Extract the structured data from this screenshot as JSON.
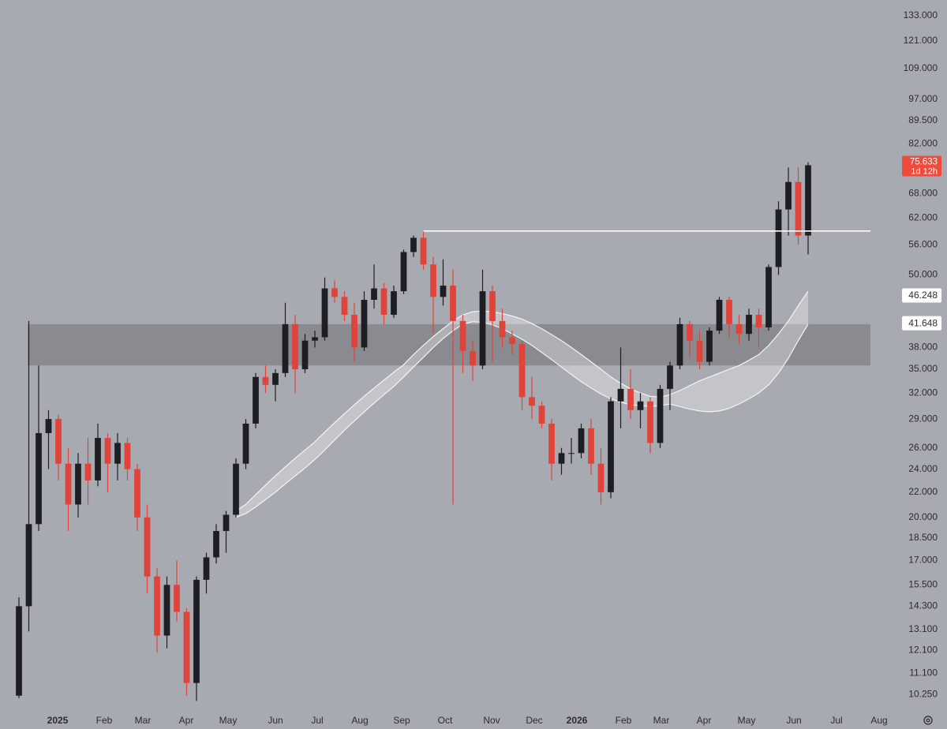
{
  "chart_data": {
    "type": "candlestick",
    "log_scale": true,
    "up_color": "#1d1e23",
    "down_color": "#df4339",
    "open": [
      10.2,
      14.3,
      19.5,
      27.5,
      29,
      24.5,
      21,
      24.5,
      23,
      27,
      24.5,
      26.5,
      24,
      20,
      16,
      12.8,
      15.5,
      14,
      10.7,
      15.8,
      17.2,
      19,
      20.2,
      24.5,
      28.5,
      34,
      33,
      34.5,
      41.5,
      35,
      39,
      39.5,
      47.5,
      46,
      43,
      38,
      45.5,
      47.5,
      43,
      47,
      54.5,
      57.5,
      52,
      46,
      48,
      42,
      37.5,
      35.5,
      47,
      42,
      39.5,
      38.5,
      31.5,
      30.5,
      28.5,
      24.5,
      25.5,
      25.5,
      28,
      24.5,
      22,
      31,
      32.5,
      30,
      31,
      26.5,
      32.5,
      35.5,
      41.5,
      39,
      36,
      40.5,
      45.5,
      41.5,
      40,
      43,
      41,
      51.5,
      64,
      71,
      58
    ],
    "high": [
      14.8,
      42,
      35.5,
      30,
      29.5,
      26,
      25.5,
      27,
      28.5,
      27.5,
      27.5,
      27,
      24.5,
      21,
      16.5,
      16,
      17,
      14.2,
      16,
      17.5,
      19.5,
      20.5,
      25,
      29,
      34.5,
      35.5,
      35,
      45,
      43,
      40,
      40.5,
      49.5,
      49,
      47,
      45,
      47,
      52,
      48.5,
      48,
      55,
      58,
      59,
      53.5,
      53,
      51,
      43,
      39,
      51,
      48,
      44,
      40.5,
      39,
      34,
      31,
      29,
      26,
      27,
      28.5,
      29,
      26,
      31.5,
      38,
      35,
      32,
      31.5,
      33,
      36,
      42.5,
      42,
      40.5,
      41,
      46,
      46,
      43,
      44,
      44,
      52,
      66,
      75,
      75,
      76.5
    ],
    "low": [
      10.1,
      13,
      19,
      24,
      23,
      19,
      20,
      21,
      22.5,
      22,
      23,
      23,
      19,
      15,
      12,
      12.2,
      13.5,
      10.2,
      10,
      15,
      16.8,
      17.5,
      20,
      24,
      28,
      32,
      31,
      34,
      32,
      34.5,
      38,
      39,
      45,
      42,
      36,
      37.5,
      44,
      41.5,
      42.5,
      46.5,
      53.5,
      51,
      40,
      44.5,
      21,
      34.5,
      33.5,
      35,
      36,
      38,
      37,
      30,
      29,
      28,
      23,
      23.5,
      24.5,
      25,
      23.5,
      21,
      21.5,
      28,
      29,
      28,
      25.5,
      26,
      30,
      35,
      36.5,
      35,
      35.5,
      40,
      39.5,
      38.5,
      39,
      38,
      40.5,
      50,
      58,
      56,
      54
    ],
    "close": [
      14.3,
      19.5,
      27.5,
      29,
      24.5,
      21,
      24.5,
      23,
      27,
      24.5,
      26.5,
      24,
      20,
      16,
      12.8,
      15.5,
      14,
      10.7,
      15.8,
      17.2,
      19,
      20.2,
      24.5,
      28.5,
      34,
      33,
      34.5,
      41.5,
      35,
      39,
      39.5,
      47.5,
      46,
      43,
      38,
      45.5,
      47.5,
      43,
      47,
      54.5,
      57.5,
      52,
      46,
      48,
      42,
      37.5,
      35.5,
      47,
      42,
      39.5,
      38.5,
      31.5,
      30.5,
      28.5,
      24.5,
      25.5,
      25.5,
      28,
      24.5,
      22,
      31,
      32.5,
      30,
      31,
      26.5,
      32.5,
      35.5,
      41.5,
      39,
      36,
      40.5,
      45.5,
      41.5,
      40,
      43,
      41,
      51.5,
      64,
      71,
      58,
      75.633
    ],
    "ribbon": {
      "upper": [
        null,
        null,
        null,
        null,
        null,
        null,
        null,
        null,
        null,
        null,
        null,
        null,
        null,
        null,
        null,
        null,
        null,
        null,
        null,
        null,
        null,
        null,
        20.5,
        21,
        21.8,
        22.6,
        23.4,
        24.2,
        25,
        25.8,
        26.6,
        27.6,
        28.6,
        29.6,
        30.6,
        31.6,
        32.6,
        33.6,
        34.6,
        35.6,
        37,
        38.3,
        39.6,
        40.8,
        42,
        43,
        43.5,
        43.6,
        43.5,
        43.2,
        42.8,
        42.3,
        41.6,
        40.8,
        39.9,
        39,
        38,
        37,
        36,
        35,
        34,
        33.2,
        32.5,
        32,
        31.6,
        31.5,
        31.8,
        32.3,
        32.9,
        33.5,
        34,
        34.5,
        35,
        35.5,
        36.2,
        37,
        38.3,
        40,
        42,
        44.5,
        47
      ],
      "lower": [
        null,
        null,
        null,
        null,
        null,
        null,
        null,
        null,
        null,
        null,
        null,
        null,
        null,
        null,
        null,
        null,
        null,
        null,
        null,
        null,
        null,
        null,
        20,
        20.3,
        20.8,
        21.4,
        22,
        22.7,
        23.4,
        24.1,
        24.9,
        25.8,
        26.8,
        27.8,
        28.8,
        29.8,
        30.8,
        31.8,
        32.8,
        34,
        35.3,
        36.6,
        38,
        39.3,
        40.5,
        41.5,
        41.9,
        41.8,
        41.4,
        40.8,
        40,
        39.2,
        38.3,
        37.3,
        36.3,
        35.3,
        34.3,
        33.4,
        32.6,
        31.9,
        31.3,
        30.9,
        30.6,
        30.5,
        30.4,
        30.5,
        30.7,
        30.4,
        30.1,
        29.9,
        29.8,
        29.9,
        30.2,
        30.7,
        31.3,
        32,
        33,
        34.5,
        36.5,
        39,
        41.5
      ]
    },
    "resistance": {
      "value": 59,
      "start": 41
    },
    "zone": [
      35.5,
      41.5
    ],
    "ylim": [
      9.66,
      141.2
    ],
    "yticks": [
      {
        "value": 133,
        "label": "133.000"
      },
      {
        "value": 121,
        "label": "121.000"
      },
      {
        "value": 109,
        "label": "109.000"
      },
      {
        "value": 97,
        "label": "97.000"
      },
      {
        "value": 89.5,
        "label": "89.500"
      },
      {
        "value": 82,
        "label": "82.000"
      },
      {
        "value": 68,
        "label": "68.000"
      },
      {
        "value": 62,
        "label": "62.000"
      },
      {
        "value": 56,
        "label": "56.000"
      },
      {
        "value": 50,
        "label": "50.000"
      },
      {
        "value": 38,
        "label": "38.000"
      },
      {
        "value": 35,
        "label": "35.000"
      },
      {
        "value": 32,
        "label": "32.000"
      },
      {
        "value": 29,
        "label": "29.000"
      },
      {
        "value": 26,
        "label": "26.000"
      },
      {
        "value": 24,
        "label": "24.000"
      },
      {
        "value": 22,
        "label": "22.000"
      },
      {
        "value": 20,
        "label": "20.000"
      },
      {
        "value": 18.5,
        "label": "18.500"
      },
      {
        "value": 17,
        "label": "17.000"
      },
      {
        "value": 15.5,
        "label": "15.500"
      },
      {
        "value": 14.3,
        "label": "14.300"
      },
      {
        "value": 13.1,
        "label": "13.100"
      },
      {
        "value": 12.1,
        "label": "12.100"
      },
      {
        "value": 11.1,
        "label": "11.100"
      },
      {
        "value": 10.25,
        "label": "10.250"
      }
    ],
    "price_markers": [
      {
        "value": 46.248,
        "label": "46.248"
      },
      {
        "value": 41.648,
        "label": "41.648"
      }
    ],
    "last_price": {
      "value": 75.633,
      "label": "75.633",
      "countdown": "1d 12h",
      "color": "#ef4a3c"
    },
    "xlim": [
      -1.92,
      94.08
    ],
    "xticks": [
      {
        "value": 3.92,
        "label": "2025"
      },
      {
        "value": 8.64,
        "label": "Feb"
      },
      {
        "value": 12.56,
        "label": "Mar"
      },
      {
        "value": 16.96,
        "label": "Apr"
      },
      {
        "value": 21.2,
        "label": "May"
      },
      {
        "value": 26,
        "label": "Jun"
      },
      {
        "value": 30.24,
        "label": "Jul"
      },
      {
        "value": 34.56,
        "label": "Aug"
      },
      {
        "value": 38.8,
        "label": "Sep"
      },
      {
        "value": 43.2,
        "label": "Oct"
      },
      {
        "value": 47.92,
        "label": "Nov"
      },
      {
        "value": 52.24,
        "label": "Dec"
      },
      {
        "value": 56.56,
        "label": "2026"
      },
      {
        "value": 61.28,
        "label": "Feb"
      },
      {
        "value": 65.12,
        "label": "Mar"
      },
      {
        "value": 69.44,
        "label": "Apr"
      },
      {
        "value": 73.76,
        "label": "May"
      },
      {
        "value": 78.56,
        "label": "Jun"
      },
      {
        "value": 82.88,
        "label": "Jul"
      },
      {
        "value": 87.2,
        "label": "Aug"
      }
    ]
  }
}
